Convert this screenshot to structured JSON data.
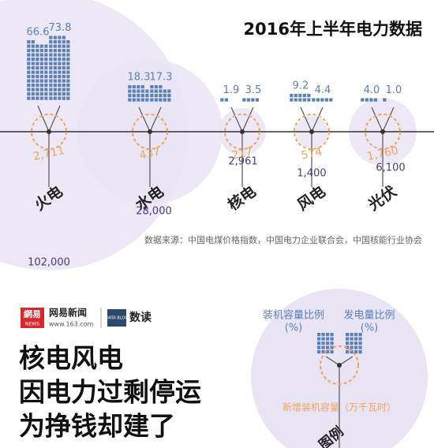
{
  "title": "2016年上半年电力数据",
  "items": [
    {
      "name": "火电",
      "capacity_share": "66.6",
      "generation_share": "73.8",
      "new_capacity": "2,711",
      "total": "102,000"
    },
    {
      "name": "水电",
      "capacity_share": "18.3",
      "generation_share": "17.3",
      "new_capacity": "437",
      "total": "28,000"
    },
    {
      "name": "核电",
      "capacity_share": "1.9",
      "generation_share": "3.5",
      "new_capacity": "217",
      "total": "2,961"
    },
    {
      "name": "风电",
      "capacity_share": "9.2",
      "generation_share": "4.4",
      "new_capacity": "574",
      "total": "1,400"
    },
    {
      "name": "光伏",
      "capacity_share": "4.0",
      "generation_share": "1.0",
      "new_capacity": "1,760",
      "total": "6,100"
    }
  ],
  "source": "数据来源：中国电煤价格指数，中国电力企业联合会，中国核能行业协会",
  "brand": {
    "logo": "網易",
    "logo_sub": "NEWS",
    "name": "网易新闻",
    "url": "www.163.com",
    "data_blog": "DATA BLOG",
    "shudu": "数读"
  },
  "headline": [
    "核电风电",
    "因电力过剩停运",
    "为挣钱却建了"
  ],
  "legend": {
    "capacity": "装机容量比例",
    "capacity_unit": "(%)",
    "generation": "发电量比例",
    "generation_unit": "(%)",
    "new_capacity": "新增装机容量（万千瓦时）",
    "label": "图例"
  }
}
